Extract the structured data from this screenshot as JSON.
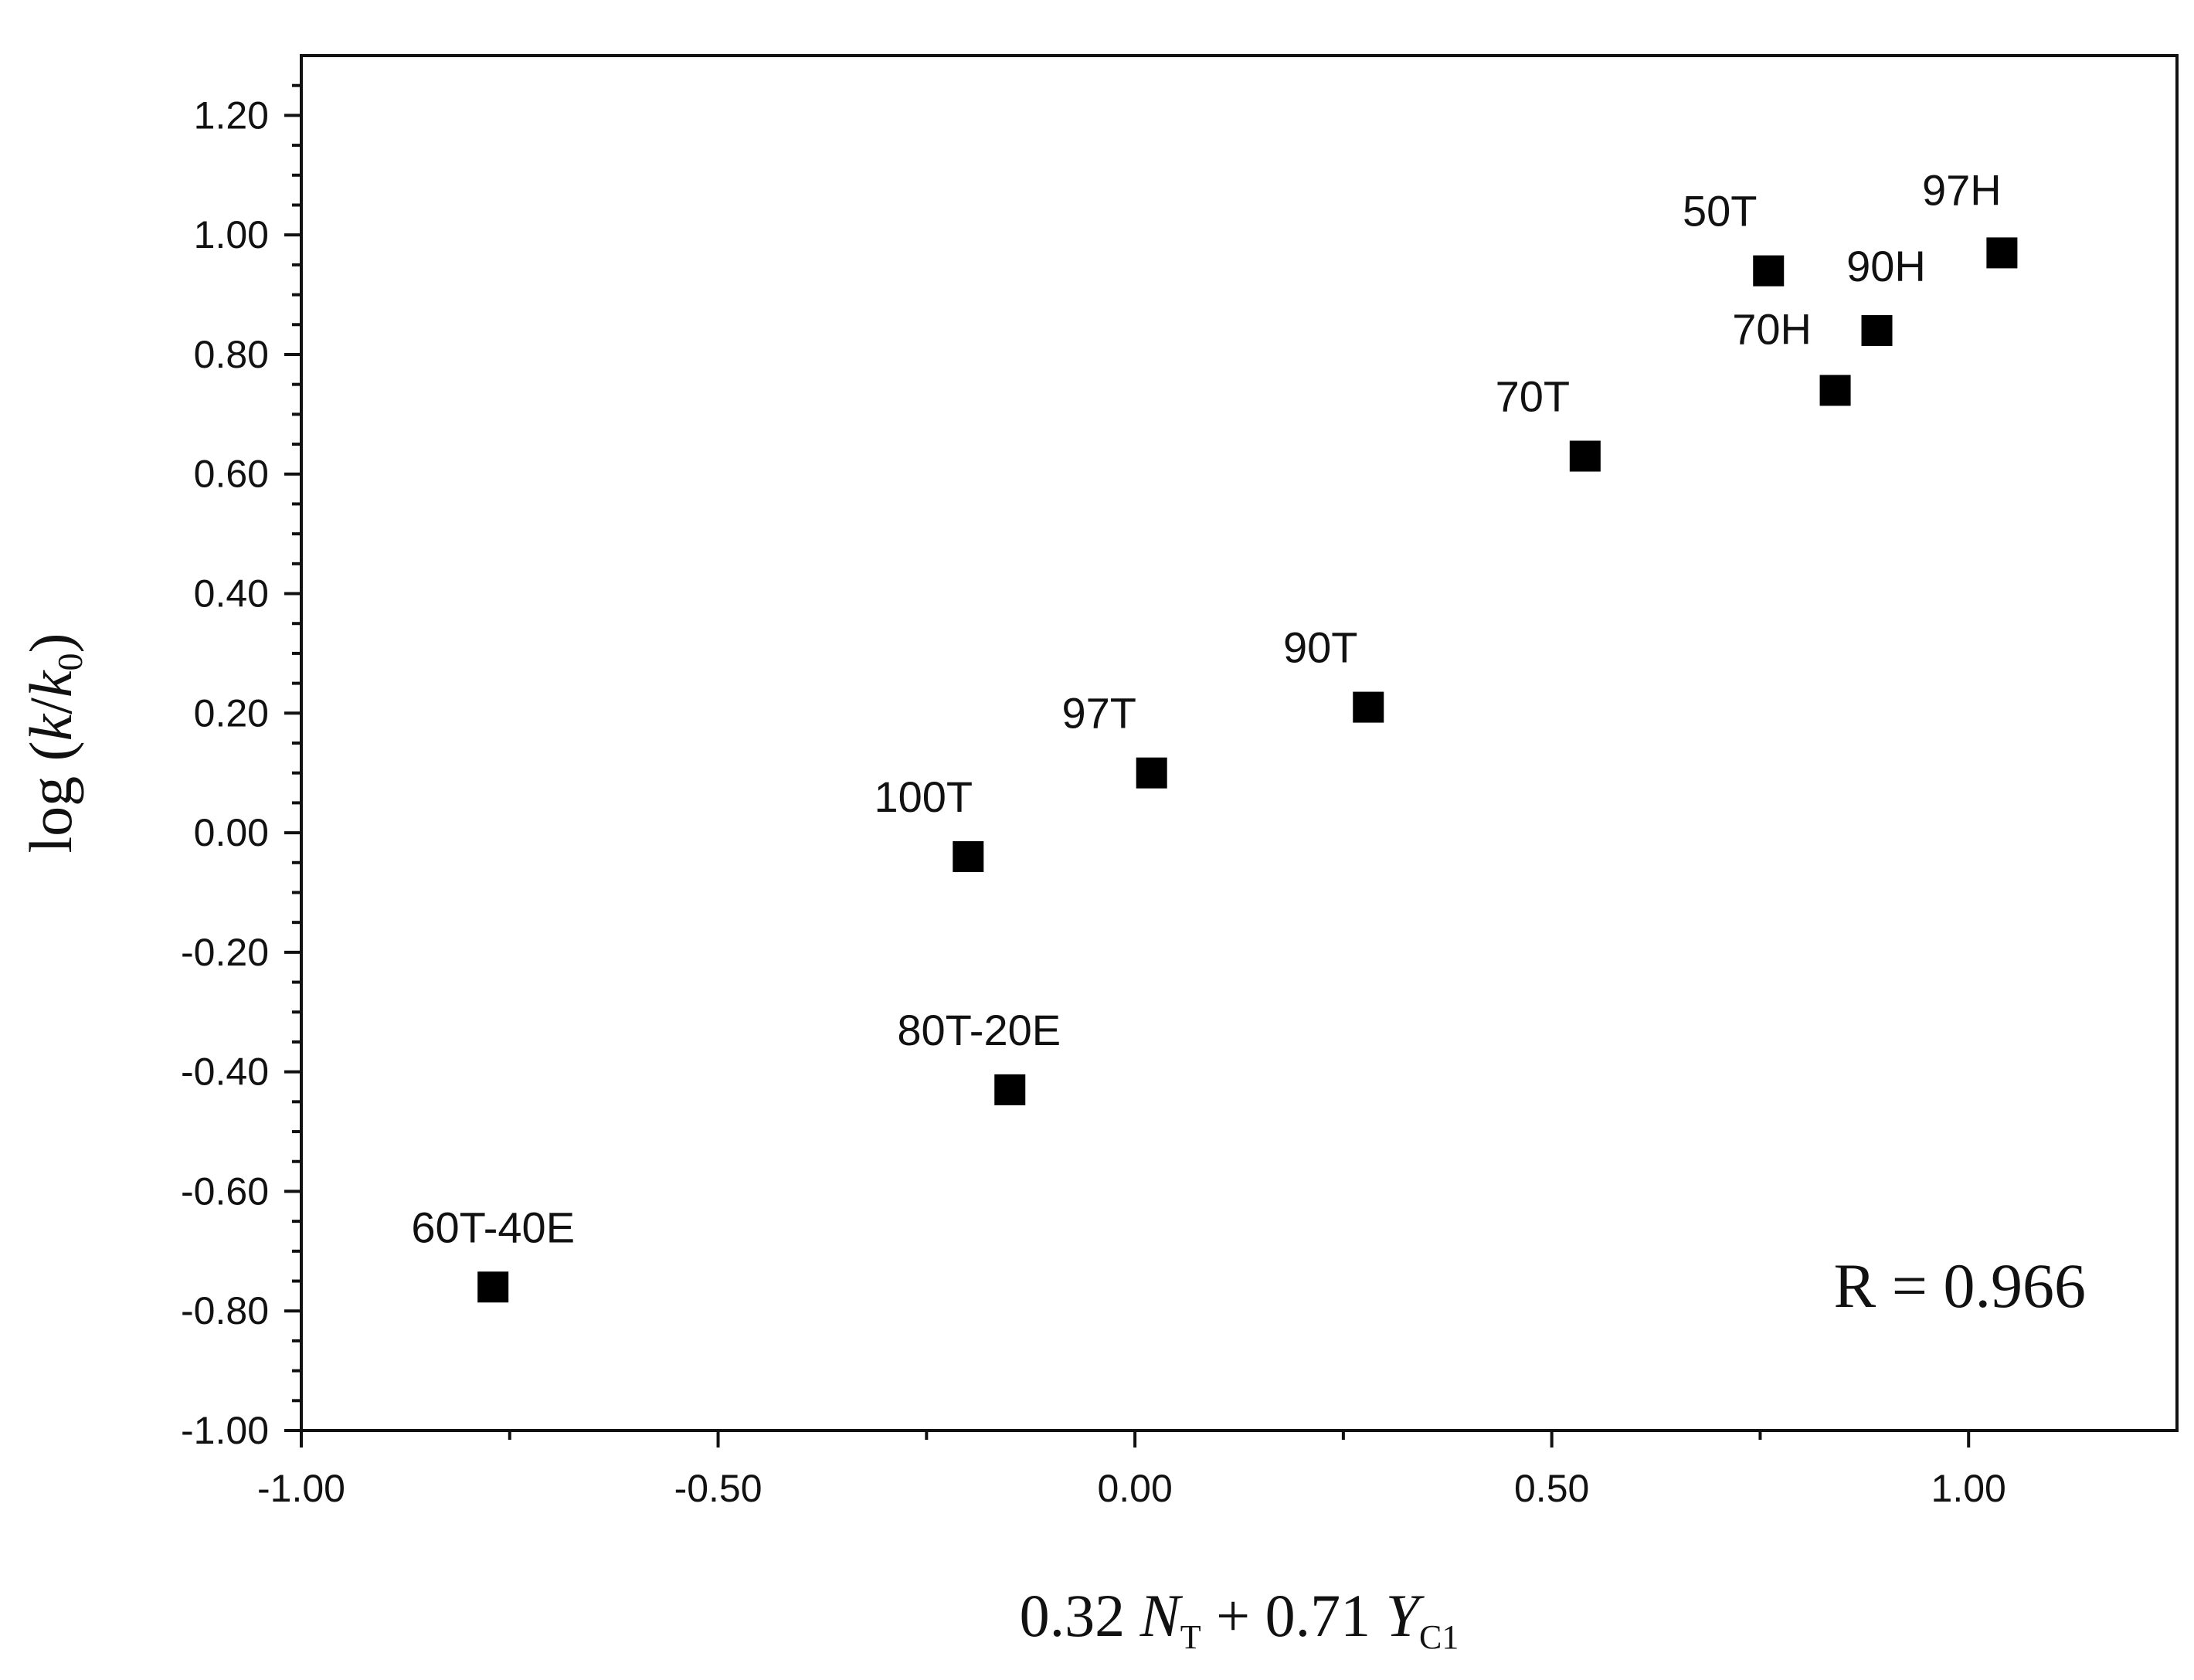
{
  "chart_data": {
    "type": "scatter",
    "title": "",
    "xlabel_parts": {
      "coef1": "0.32 ",
      "var1": "N",
      "sub1": "T",
      "mid": " + 0.71 ",
      "var2": "Y",
      "sub2": "C1"
    },
    "ylabel_parts": {
      "prefix": "log (",
      "k": "k",
      "slash": "/",
      "k0": "k",
      "sub0": "0",
      "suffix": ")"
    },
    "xlim": [
      -1.0,
      1.25
    ],
    "ylim": [
      -1.0,
      1.3
    ],
    "x_ticks": [
      -1.0,
      -0.5,
      0.0,
      0.5,
      1.0
    ],
    "x_tick_labels": [
      "-1.00",
      "-0.50",
      "0.00",
      "0.50",
      "1.00"
    ],
    "y_ticks": [
      -1.0,
      -0.8,
      -0.6,
      -0.4,
      -0.2,
      0.0,
      0.2,
      0.4,
      0.6,
      0.8,
      1.0,
      1.2
    ],
    "y_tick_labels": [
      "-1.00",
      "-0.80",
      "-0.60",
      "-0.40",
      "-0.20",
      "0.00",
      "0.20",
      "0.40",
      "0.60",
      "0.80",
      "1.00",
      "1.20"
    ],
    "grid": false,
    "marker": "square",
    "marker_color": "#000000",
    "points": [
      {
        "label": "60T-40E",
        "x": -0.77,
        "y": -0.76
      },
      {
        "label": "80T-20E",
        "x": -0.15,
        "y": -0.43
      },
      {
        "label": "100T",
        "x": -0.2,
        "y": -0.04
      },
      {
        "label": "97T",
        "x": 0.02,
        "y": 0.1
      },
      {
        "label": "90T",
        "x": 0.28,
        "y": 0.21
      },
      {
        "label": "70T",
        "x": 0.54,
        "y": 0.63
      },
      {
        "label": "50T",
        "x": 0.76,
        "y": 0.94
      },
      {
        "label": "70H",
        "x": 0.84,
        "y": 0.74
      },
      {
        "label": "90H",
        "x": 0.89,
        "y": 0.84
      },
      {
        "label": "97H",
        "x": 1.04,
        "y": 0.97
      }
    ],
    "annotation": "R = 0.966"
  }
}
